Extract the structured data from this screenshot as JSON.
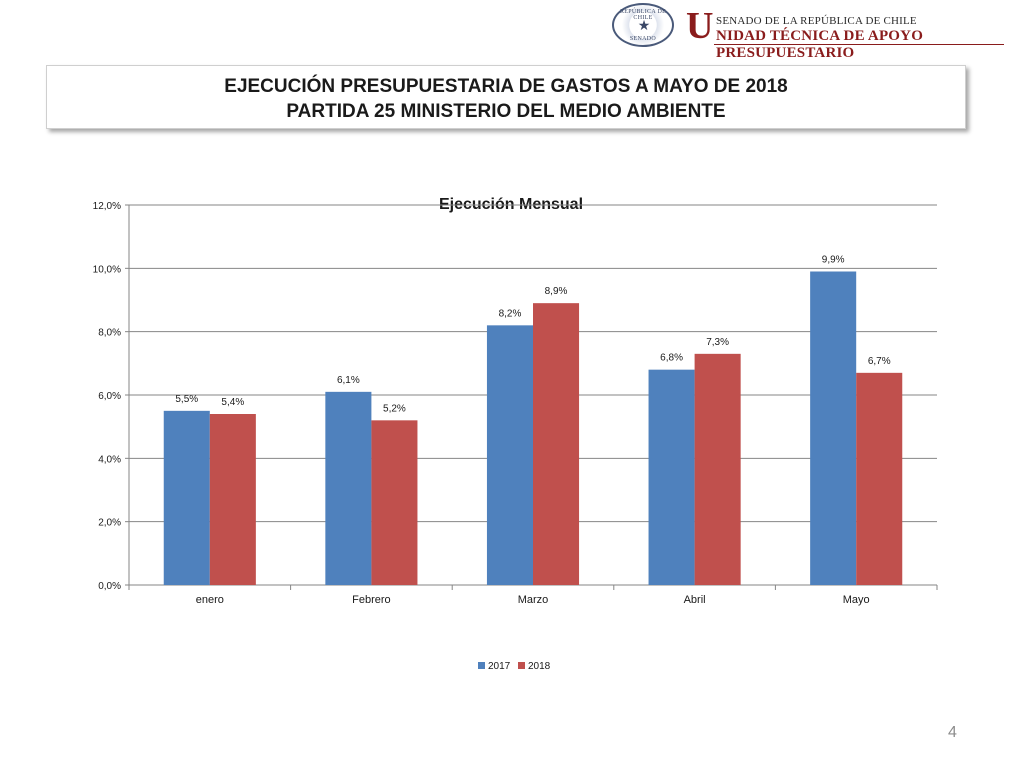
{
  "header": {
    "seal_top": "REPÚBLICA DE CHILE",
    "seal_bottom": "SENADO",
    "brand_letter": "U",
    "brand_top": "SENADO DE LA REPÚBLICA DE CHILE",
    "brand_bottom": "NIDAD TÉCNICA DE APOYO PRESUPUESTARIO"
  },
  "title": {
    "line1": "EJECUCIÓN PRESUPUESTARIA DE GASTOS A MAYO DE 2018",
    "line2": "PARTIDA 25 MINISTERIO DEL MEDIO AMBIENTE"
  },
  "chart_data": {
    "type": "bar",
    "title": "Ejecución Mensual",
    "xlabel": "",
    "ylabel": "",
    "categories": [
      "enero",
      "Febrero",
      "Marzo",
      "Abril",
      "Mayo"
    ],
    "series": [
      {
        "name": "2017",
        "color": "#4F81BD",
        "values": [
          5.5,
          6.1,
          8.2,
          6.8,
          9.9
        ],
        "labels": [
          "5,5%",
          "6,1%",
          "8,2%",
          "6,8%",
          "9,9%"
        ]
      },
      {
        "name": "2018",
        "color": "#C0504D",
        "values": [
          5.4,
          5.2,
          8.9,
          7.3,
          6.7
        ],
        "labels": [
          "5,4%",
          "5,2%",
          "8,9%",
          "7,3%",
          "6,7%"
        ]
      }
    ],
    "ylim": [
      0,
      12
    ],
    "yticks": [
      0,
      2,
      4,
      6,
      8,
      10,
      12
    ],
    "ytick_labels": [
      "0,0%",
      "2,0%",
      "4,0%",
      "6,0%",
      "8,0%",
      "10,0%",
      "12,0%"
    ],
    "grid": true,
    "legend_position": "bottom"
  },
  "page_number": "4"
}
